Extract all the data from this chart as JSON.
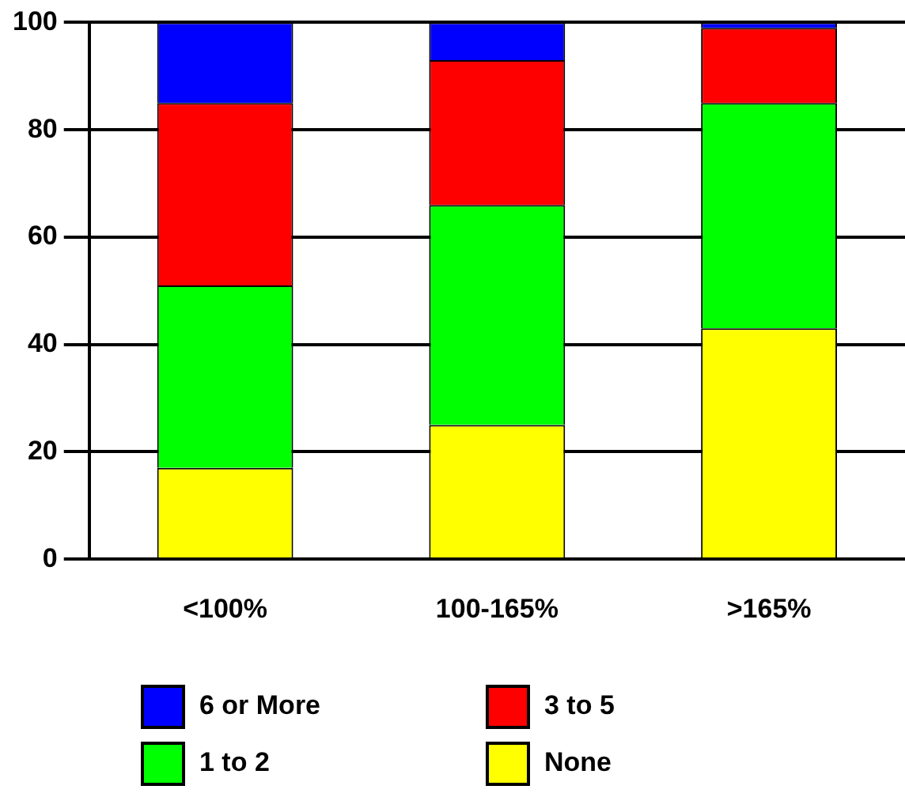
{
  "chart_data": {
    "type": "bar",
    "stacked": true,
    "categories": [
      "<100%",
      "100-165%",
      ">165%"
    ],
    "series": [
      {
        "name": "None",
        "color": "#ffff00",
        "values": [
          17,
          25,
          43
        ]
      },
      {
        "name": "1 to 2",
        "color": "#00ff00",
        "values": [
          34,
          41,
          42
        ]
      },
      {
        "name": "3 to 5",
        "color": "#ff0000",
        "values": [
          34,
          27,
          14
        ]
      },
      {
        "name": "6 or More",
        "color": "#0000ff",
        "values": [
          15,
          7,
          1
        ]
      }
    ],
    "ylim": [
      0,
      100
    ],
    "yticks": [
      0,
      20,
      40,
      60,
      80,
      100
    ],
    "grid": "y",
    "legend": "bottom"
  }
}
